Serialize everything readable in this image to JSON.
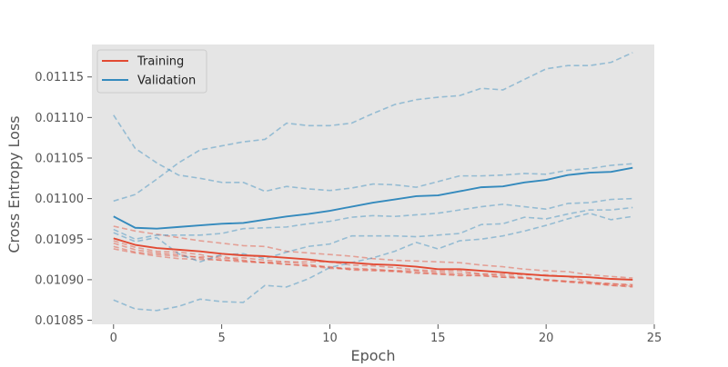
{
  "chart_data": {
    "type": "line",
    "title": "",
    "xlabel": "Epoch",
    "ylabel": "Cross Entropy Loss",
    "xlim": [
      -1,
      25
    ],
    "ylim": [
      0.010845,
      0.01119
    ],
    "xticks": [
      0,
      5,
      10,
      15,
      20,
      25
    ],
    "yticks": [
      0.01085,
      0.0109,
      0.01095,
      0.011,
      0.01105,
      0.0111,
      0.01115
    ],
    "ytick_labels": [
      "0.01085",
      "0.01090",
      "0.01095",
      "0.01100",
      "0.01105",
      "0.01110",
      "0.01115"
    ],
    "grid": false,
    "background": "#e5e5e5",
    "legend_position": "top-left",
    "x": [
      0,
      1,
      2,
      3,
      4,
      5,
      6,
      7,
      8,
      9,
      10,
      11,
      12,
      13,
      14,
      15,
      16,
      17,
      18,
      19,
      20,
      21,
      22,
      23,
      24
    ],
    "series": [
      {
        "name": "Training",
        "color": "#e24a33",
        "style": "solid",
        "values": [
          0.010951,
          0.010943,
          0.010939,
          0.010937,
          0.010935,
          0.010932,
          0.01093,
          0.010929,
          0.010927,
          0.010925,
          0.010922,
          0.010921,
          0.010919,
          0.010918,
          0.010916,
          0.010913,
          0.010913,
          0.010911,
          0.010909,
          0.010907,
          0.010905,
          0.010904,
          0.010903,
          0.010901,
          0.0109
        ]
      },
      {
        "name": "Validation",
        "color": "#348abd",
        "style": "solid",
        "values": [
          0.010978,
          0.010964,
          0.010963,
          0.010965,
          0.010967,
          0.010969,
          0.01097,
          0.010974,
          0.010978,
          0.010981,
          0.010985,
          0.01099,
          0.010995,
          0.010999,
          0.011003,
          0.011004,
          0.011009,
          0.011014,
          0.011015,
          0.01102,
          0.011023,
          0.011029,
          0.011032,
          0.011033,
          0.011038
        ]
      },
      {
        "color": "#e24a33",
        "style": "dashed",
        "values": [
          0.010966,
          0.01096,
          0.010956,
          0.010952,
          0.010948,
          0.010945,
          0.010942,
          0.010941,
          0.010935,
          0.010933,
          0.010931,
          0.010929,
          0.010926,
          0.010924,
          0.010923,
          0.010922,
          0.010921,
          0.010918,
          0.010916,
          0.010913,
          0.010911,
          0.01091,
          0.010906,
          0.010904,
          0.010902
        ]
      },
      {
        "color": "#e24a33",
        "style": "dashed",
        "values": [
          0.010948,
          0.01094,
          0.010935,
          0.010934,
          0.010931,
          0.010926,
          0.010927,
          0.010924,
          0.010922,
          0.010922,
          0.010922,
          0.010918,
          0.010917,
          0.010915,
          0.010912,
          0.010911,
          0.010911,
          0.010907,
          0.010907,
          0.010906,
          0.010906,
          0.010904,
          0.010897,
          0.010893,
          0.010892
        ]
      },
      {
        "color": "#e24a33",
        "style": "dashed",
        "values": [
          0.010945,
          0.010937,
          0.010933,
          0.010931,
          0.010927,
          0.010924,
          0.010924,
          0.010921,
          0.010922,
          0.010919,
          0.010915,
          0.010914,
          0.010913,
          0.010911,
          0.010911,
          0.010909,
          0.010908,
          0.010907,
          0.010905,
          0.010903,
          0.0109,
          0.010898,
          0.010896,
          0.010895,
          0.010894
        ]
      },
      {
        "color": "#e24a33",
        "style": "dashed",
        "values": [
          0.010941,
          0.010934,
          0.010931,
          0.010929,
          0.010928,
          0.010929,
          0.010923,
          0.010921,
          0.010919,
          0.010917,
          0.010916,
          0.010912,
          0.010911,
          0.01091,
          0.010908,
          0.010907,
          0.010905,
          0.010905,
          0.010903,
          0.010902,
          0.010899,
          0.010897,
          0.010895,
          0.010893,
          0.010891
        ]
      },
      {
        "color": "#e24a33",
        "style": "dashed",
        "values": [
          0.010938,
          0.010933,
          0.010929,
          0.010926,
          0.010925,
          0.010924,
          0.010922,
          0.010921,
          0.010919,
          0.010917,
          0.010914,
          0.010913,
          0.010912,
          0.010911,
          0.010909,
          0.010907,
          0.010906,
          0.010905,
          0.010903,
          0.010902,
          0.0109,
          0.010898,
          0.010897,
          0.010895,
          0.010893
        ]
      },
      {
        "color": "#348abd",
        "style": "dashed",
        "values": [
          0.011103,
          0.011062,
          0.011044,
          0.011029,
          0.011025,
          0.01102,
          0.01102,
          0.011009,
          0.011015,
          0.011012,
          0.01101,
          0.011013,
          0.011018,
          0.011017,
          0.011014,
          0.011021,
          0.011028,
          0.011028,
          0.011029,
          0.011031,
          0.01103,
          0.011035,
          0.011037,
          0.011041,
          0.011043
        ]
      },
      {
        "color": "#348abd",
        "style": "dashed",
        "values": [
          0.010997,
          0.011005,
          0.011024,
          0.011044,
          0.01106,
          0.011065,
          0.01107,
          0.011073,
          0.011093,
          0.01109,
          0.01109,
          0.011093,
          0.011105,
          0.011116,
          0.011122,
          0.011125,
          0.011127,
          0.011136,
          0.011134,
          0.011147,
          0.01116,
          0.011164,
          0.011164,
          0.011168,
          0.01118
        ]
      },
      {
        "color": "#348abd",
        "style": "dashed",
        "values": [
          0.010962,
          0.01095,
          0.010955,
          0.010955,
          0.010955,
          0.010957,
          0.010963,
          0.010964,
          0.010965,
          0.010969,
          0.010972,
          0.010977,
          0.010979,
          0.010978,
          0.01098,
          0.010982,
          0.010986,
          0.01099,
          0.010993,
          0.01099,
          0.010987,
          0.010994,
          0.010995,
          0.010999,
          0.011
        ]
      },
      {
        "color": "#348abd",
        "style": "dashed",
        "values": [
          0.010958,
          0.010947,
          0.010952,
          0.010932,
          0.010922,
          0.010931,
          0.010932,
          0.010926,
          0.010934,
          0.010941,
          0.010944,
          0.010954,
          0.010954,
          0.010954,
          0.010953,
          0.010955,
          0.010957,
          0.010968,
          0.010969,
          0.010977,
          0.010975,
          0.010981,
          0.010986,
          0.010986,
          0.010989
        ]
      },
      {
        "color": "#348abd",
        "style": "dashed",
        "values": [
          0.010875,
          0.010864,
          0.010862,
          0.010867,
          0.010876,
          0.010873,
          0.010872,
          0.010893,
          0.010891,
          0.010901,
          0.010915,
          0.010921,
          0.010927,
          0.010935,
          0.010946,
          0.010938,
          0.010948,
          0.01095,
          0.010954,
          0.01096,
          0.010967,
          0.010975,
          0.010982,
          0.010974,
          0.010978
        ]
      }
    ]
  }
}
